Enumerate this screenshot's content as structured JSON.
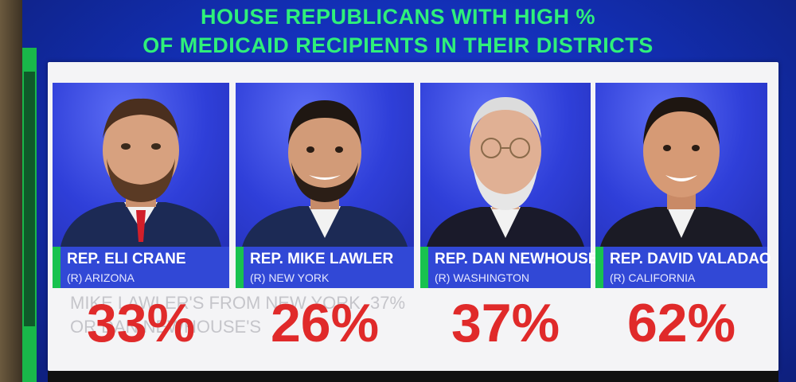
{
  "headline": {
    "line1": "HOUSE REPUBLICANS WITH HIGH %",
    "line2": "OF MEDICAID RECIPIENTS IN THEIR DISTRICTS"
  },
  "representatives": [
    {
      "name": "REP. ELI CRANE",
      "party_state": "(R) ARIZONA",
      "percent": "33%"
    },
    {
      "name": "REP. MIKE LAWLER",
      "party_state": "(R) NEW YORK",
      "percent": "26%"
    },
    {
      "name": "REP. DAN NEWHOUSE",
      "party_state": "(R) WASHINGTON",
      "percent": "37%"
    },
    {
      "name": "REP. DAVID VALADAO",
      "party_state": "(R) CALIFORNIA",
      "percent": "62%"
    }
  ],
  "ghost_text": {
    "line1": "MIKE LAWLER'S FROM NEW YORK, 37%",
    "line2": "OR DAN NEWHOUSE'S"
  },
  "colors": {
    "headline": "#2ff07a",
    "percent": "#e02a2a",
    "nameplate": "#3148d6",
    "accent": "#18c24f"
  }
}
